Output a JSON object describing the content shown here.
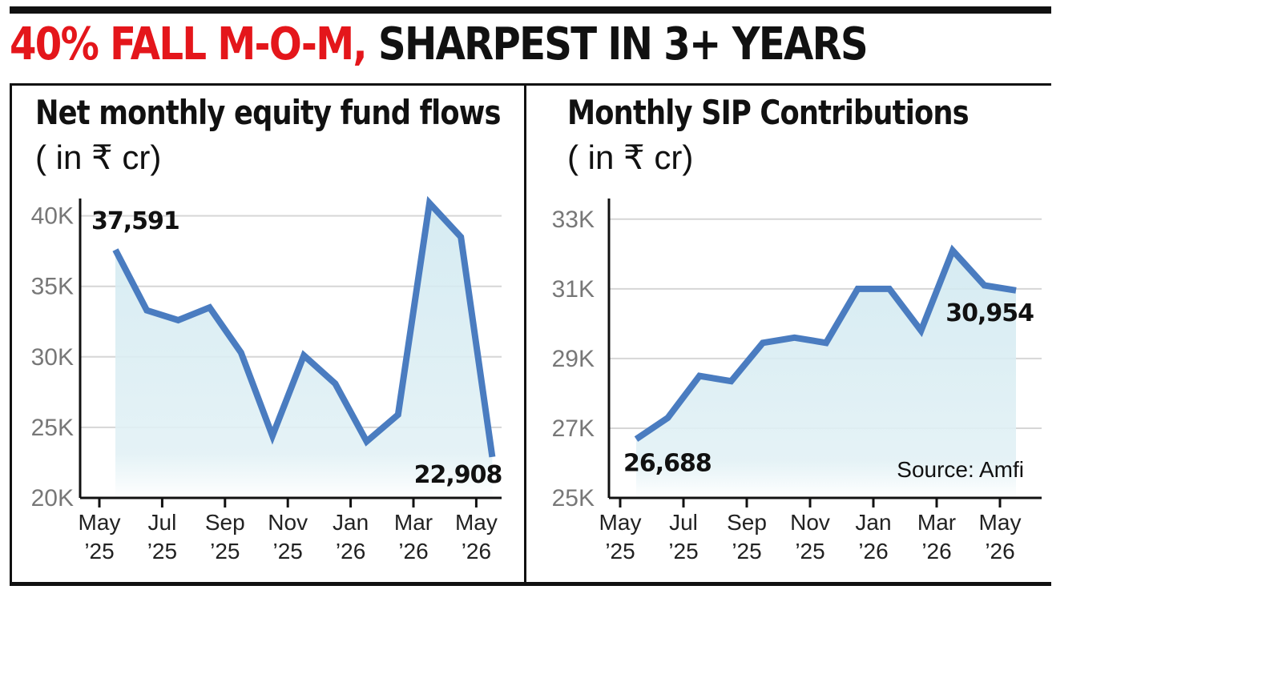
{
  "headline": {
    "red": "40% FALL M-O-M,",
    "black": "SHARPEST IN 3+ YEARS"
  },
  "colors": {
    "accent": "#e4161b",
    "line": "#4a7cc0",
    "fill": "#cfe8f0",
    "grid": "#d6d6d6",
    "text": "#111111"
  },
  "chart_data": [
    {
      "type": "area",
      "title": "Net monthly equity fund flows",
      "unit": "( in ₹ cr)",
      "ylim": [
        20000,
        41000
      ],
      "ytick_values": [
        20000,
        25000,
        30000,
        35000,
        40000
      ],
      "ytick_labels": [
        "20K",
        "25K",
        "30K",
        "35K",
        "40K"
      ],
      "xtick_labels": [
        [
          "May",
          "’25"
        ],
        [
          "Jul",
          "’25"
        ],
        [
          "Sep",
          "’25"
        ],
        [
          "Nov",
          "’25"
        ],
        [
          "Jan",
          "’26"
        ],
        [
          "Mar",
          "’26"
        ],
        [
          "May",
          "’26"
        ]
      ],
      "values": [
        37591,
        33300,
        32600,
        33500,
        30300,
        24400,
        30100,
        28100,
        24000,
        25900,
        40900,
        38500,
        22908
      ],
      "point_labels": [
        {
          "index": 0,
          "text": "37,591"
        },
        {
          "index": 12,
          "text": "22,908"
        }
      ],
      "grid": true
    },
    {
      "type": "area",
      "title": "Monthly SIP Contributions",
      "unit": "( in ₹ cr)",
      "ylim": [
        25000,
        33500
      ],
      "ytick_values": [
        25000,
        27000,
        29000,
        31000,
        33000
      ],
      "ytick_labels": [
        "25K",
        "27K",
        "29K",
        "31K",
        "33K"
      ],
      "xtick_labels": [
        [
          "May",
          "’25"
        ],
        [
          "Jul",
          "’25"
        ],
        [
          "Sep",
          "’25"
        ],
        [
          "Nov",
          "’25"
        ],
        [
          "Jan",
          "’26"
        ],
        [
          "Mar",
          "’26"
        ],
        [
          "May",
          "’26"
        ]
      ],
      "values": [
        26688,
        27300,
        28500,
        28350,
        29450,
        29600,
        29450,
        31000,
        31000,
        29800,
        32100,
        31100,
        30954
      ],
      "point_labels": [
        {
          "index": 0,
          "text": "26,688"
        },
        {
          "index": 12,
          "text": "30,954"
        }
      ],
      "source": "Source: Amfi",
      "grid": true
    }
  ]
}
